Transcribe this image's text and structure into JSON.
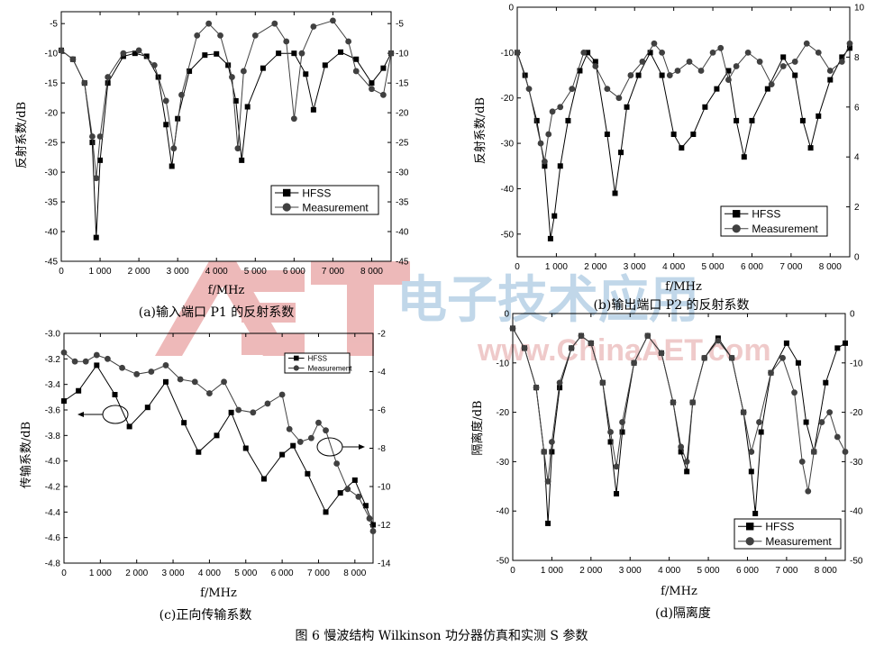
{
  "figure_caption": "图 6   慢波结构 Wilkinson 功分器仿真和实测 S 参数",
  "watermark": {
    "logo": "AET",
    "text": "www.ChinaAET.com",
    "brand_cn": "电子技术应用"
  },
  "legend_labels": {
    "hfss": "HFSS",
    "measurement": "Measurement"
  },
  "colors": {
    "hfss": "#000000",
    "measurement": "#404040",
    "watermark_red": "#e08080",
    "watermark_blue": "#8fb8d8"
  },
  "chart_data": [
    {
      "id": "a",
      "type": "scatter",
      "caption": "(a)输入端口 P1 的反射系数",
      "xlabel": "f/MHz",
      "ylabel": "反射系数/dB",
      "xlim": [
        0,
        8500
      ],
      "ylim": [
        -45,
        -3
      ],
      "y2lim": [
        -45,
        -3
      ],
      "xticks": [
        0,
        1000,
        2000,
        3000,
        4000,
        5000,
        6000,
        7000,
        8000
      ],
      "xtick_labels": [
        "0",
        "1 000",
        "2 000",
        "3 000",
        "4 000",
        "5 000",
        "6 000",
        "7 000",
        "8 000"
      ],
      "yticks": [
        -5,
        -10,
        -15,
        -20,
        -25,
        -30,
        -35,
        -40,
        -45
      ],
      "y2ticks": [
        -5,
        -10,
        -15,
        -20,
        -25,
        -30,
        -35,
        -40,
        -45
      ],
      "legend": "bottom-right",
      "series": [
        {
          "name": "HFSS",
          "marker": "square",
          "x": [
            0,
            300,
            600,
            800,
            900,
            1000,
            1200,
            1600,
            1900,
            2200,
            2500,
            2700,
            2850,
            3000,
            3300,
            3700,
            4000,
            4300,
            4500,
            4650,
            4800,
            5200,
            5600,
            6000,
            6300,
            6500,
            6800,
            7200,
            7600,
            8000,
            8300,
            8500
          ],
          "y": [
            -9.5,
            -11,
            -15,
            -25,
            -41,
            -28,
            -15,
            -10.5,
            -10,
            -10.5,
            -14,
            -22,
            -29,
            -21,
            -13,
            -10.3,
            -10.1,
            -12,
            -18,
            -28,
            -19,
            -12.5,
            -10,
            -10,
            -13.5,
            -19.5,
            -12,
            -9.8,
            -11,
            -15,
            -12.5,
            -10
          ]
        },
        {
          "name": "Measurement",
          "marker": "circle",
          "x": [
            0,
            300,
            600,
            800,
            900,
            1000,
            1200,
            1600,
            2000,
            2400,
            2700,
            2900,
            3100,
            3500,
            3800,
            4100,
            4400,
            4550,
            4700,
            5000,
            5500,
            5800,
            6000,
            6200,
            6500,
            7000,
            7400,
            7600,
            8000,
            8300,
            8500
          ],
          "y": [
            -9.5,
            -11,
            -15,
            -24,
            -31,
            -24,
            -14,
            -10,
            -9.5,
            -12,
            -18,
            -26,
            -17,
            -7,
            -5,
            -7,
            -14,
            -26,
            -13,
            -7,
            -5,
            -8,
            -21,
            -10,
            -5.5,
            -4.5,
            -8,
            -13,
            -16,
            -17,
            -10
          ]
        }
      ]
    },
    {
      "id": "b",
      "type": "scatter",
      "caption": "(b)输出端口 P2 的反射系数",
      "xlabel": "f/MHz",
      "ylabel": "反射系数/dB",
      "xlim": [
        0,
        8500
      ],
      "ylim": [
        -55,
        0
      ],
      "y2lim": [
        0,
        10
      ],
      "xticks": [
        0,
        1000,
        2000,
        3000,
        4000,
        5000,
        6000,
        7000,
        8000
      ],
      "xtick_labels": [
        "0",
        "1 000",
        "2 000",
        "3 000",
        "4 000",
        "5 000",
        "6 000",
        "7 000",
        "8 000"
      ],
      "yticks": [
        0,
        -10,
        -20,
        -30,
        -40,
        -50
      ],
      "y2ticks": [
        10,
        8,
        6,
        4,
        2,
        0
      ],
      "legend": "bottom-right",
      "series": [
        {
          "name": "HFSS",
          "marker": "square",
          "x": [
            0,
            200,
            500,
            700,
            850,
            950,
            1100,
            1300,
            1600,
            1800,
            2000,
            2300,
            2500,
            2650,
            2800,
            3100,
            3400,
            3700,
            4000,
            4200,
            4500,
            4800,
            5100,
            5400,
            5600,
            5800,
            6000,
            6400,
            6800,
            7100,
            7300,
            7500,
            7700,
            8000,
            8300,
            8500
          ],
          "y": [
            -10,
            -15,
            -25,
            -35,
            -51,
            -46,
            -35,
            -25,
            -14,
            -10,
            -12,
            -28,
            -41,
            -32,
            -22,
            -15,
            -10,
            -15,
            -28,
            -31,
            -28,
            -22,
            -18,
            -14,
            -25,
            -33,
            -25,
            -18,
            -11,
            -15,
            -25,
            -31,
            -24,
            -16,
            -11,
            -9
          ]
        },
        {
          "name": "Measurement",
          "marker": "circle",
          "x": [
            0,
            300,
            600,
            700,
            800,
            900,
            1100,
            1400,
            1700,
            2000,
            2300,
            2600,
            2900,
            3200,
            3500,
            3700,
            3900,
            4100,
            4400,
            4700,
            5000,
            5200,
            5400,
            5600,
            5900,
            6200,
            6500,
            6800,
            7100,
            7400,
            7700,
            8000,
            8300,
            8500
          ],
          "y": [
            -10,
            -18,
            -30,
            -34,
            -28,
            -23,
            -22,
            -18,
            -10,
            -13,
            -18,
            -20,
            -15,
            -12,
            -8,
            -10,
            -15,
            -14,
            -12,
            -14,
            -10,
            -9,
            -16,
            -13,
            -10,
            -12,
            -17,
            -13,
            -12,
            -8,
            -10,
            -14,
            -12,
            -8
          ]
        }
      ]
    },
    {
      "id": "c",
      "type": "scatter",
      "caption": "(c)正向传输系数",
      "xlabel": "f/MHz",
      "ylabel": "传输系数/dB",
      "xlim": [
        0,
        8500
      ],
      "ylim": [
        -4.8,
        -3.0
      ],
      "y2lim": [
        -14,
        -2
      ],
      "xticks": [
        0,
        1000,
        2000,
        3000,
        4000,
        5000,
        6000,
        7000,
        8000
      ],
      "xtick_labels": [
        "0",
        "1 000",
        "2 000",
        "3 000",
        "4 000",
        "5 000",
        "6 000",
        "7 000",
        "8 000"
      ],
      "yticks": [
        -3.0,
        -3.2,
        -3.4,
        -3.6,
        -3.8,
        -4.0,
        -4.2,
        -4.4,
        -4.6,
        -4.8
      ],
      "ytick_labels": [
        "-3.0",
        "-3.2",
        "-3.4",
        "-3.6",
        "-3.8",
        "-4.0",
        "-4.2",
        "-4.4",
        "-4.6",
        "-4.8"
      ],
      "y2ticks": [
        -2,
        -4,
        -6,
        -8,
        -10,
        -12,
        -14
      ],
      "legend": "top-right",
      "series": [
        {
          "name": "HFSS",
          "marker": "square",
          "axis": "left",
          "x": [
            0,
            400,
            900,
            1400,
            1800,
            2300,
            2800,
            3300,
            3700,
            4200,
            4600,
            5000,
            5500,
            6000,
            6300,
            6700,
            7200,
            7600,
            8000,
            8300,
            8500
          ],
          "y": [
            -3.53,
            -3.45,
            -3.25,
            -3.48,
            -3.73,
            -3.58,
            -3.38,
            -3.7,
            -3.93,
            -3.8,
            -3.62,
            -3.9,
            -4.14,
            -3.95,
            -3.88,
            -4.1,
            -4.4,
            -4.25,
            -4.15,
            -4.35,
            -4.5
          ]
        },
        {
          "name": "Measurement",
          "marker": "circle",
          "axis": "left",
          "x": [
            0,
            300,
            600,
            900,
            1200,
            1600,
            2000,
            2400,
            2800,
            3200,
            3600,
            4000,
            4400,
            4800,
            5200,
            5600,
            6000,
            6200,
            6500,
            6800,
            7000,
            7200,
            7500,
            7800,
            8100,
            8400,
            8500
          ],
          "y": [
            -3.15,
            -3.22,
            -3.22,
            -3.17,
            -3.2,
            -3.27,
            -3.32,
            -3.3,
            -3.25,
            -3.36,
            -3.38,
            -3.47,
            -3.38,
            -3.6,
            -3.62,
            -3.55,
            -3.48,
            -3.75,
            -3.85,
            -3.82,
            -3.7,
            -3.76,
            -4.02,
            -4.22,
            -4.28,
            -4.45,
            -4.55
          ]
        }
      ],
      "annotations": [
        {
          "text": "",
          "target": "left-axis",
          "note": "ellipse with arrow pointing left near HFSS curve"
        },
        {
          "text": "",
          "target": "right-axis",
          "note": "ellipse with arrow pointing right near Measurement curve"
        }
      ]
    },
    {
      "id": "d",
      "type": "scatter",
      "caption": "(d)隔离度",
      "xlabel": "f/MHz",
      "ylabel": "隔离度/dB",
      "xlim": [
        0,
        8500
      ],
      "ylim": [
        -50,
        0
      ],
      "y2lim": [
        -50,
        0
      ],
      "xticks": [
        0,
        1000,
        2000,
        3000,
        4000,
        5000,
        6000,
        7000,
        8000
      ],
      "xtick_labels": [
        "0",
        "1 000",
        "2 000",
        "3 000",
        "4 000",
        "5 000",
        "6 000",
        "7 000",
        "8 000"
      ],
      "yticks": [
        0,
        -10,
        -20,
        -30,
        -40,
        -50
      ],
      "y2ticks": [
        0,
        -10,
        -20,
        -30,
        -40,
        -50
      ],
      "legend": "bottom-right",
      "series": [
        {
          "name": "HFSS",
          "marker": "square",
          "x": [
            0,
            300,
            600,
            800,
            900,
            1000,
            1200,
            1500,
            1750,
            2000,
            2300,
            2500,
            2650,
            2800,
            3100,
            3450,
            3800,
            4100,
            4300,
            4450,
            4600,
            4900,
            5250,
            5600,
            5900,
            6100,
            6200,
            6350,
            6600,
            7000,
            7300,
            7500,
            7700,
            8000,
            8300,
            8500
          ],
          "y": [
            -3,
            -7,
            -15,
            -28,
            -42.5,
            -28,
            -15,
            -7,
            -4.5,
            -6,
            -14,
            -26,
            -36.5,
            -24,
            -10,
            -4.5,
            -8,
            -18,
            -28,
            -32,
            -18,
            -9,
            -5,
            -9,
            -20,
            -32,
            -40.5,
            -24,
            -12,
            -6,
            -10,
            -22,
            -28,
            -14,
            -7,
            -6
          ]
        },
        {
          "name": "Measurement",
          "marker": "circle",
          "x": [
            0,
            300,
            600,
            800,
            900,
            1000,
            1200,
            1500,
            1750,
            2000,
            2300,
            2500,
            2650,
            2800,
            3100,
            3450,
            3800,
            4100,
            4300,
            4450,
            4600,
            4900,
            5250,
            5600,
            5900,
            6100,
            6300,
            6600,
            6900,
            7200,
            7400,
            7550,
            7700,
            7900,
            8100,
            8300,
            8500
          ],
          "y": [
            -3,
            -7,
            -15,
            -28,
            -34,
            -26,
            -14,
            -7,
            -4.5,
            -6,
            -14,
            -24,
            -31,
            -22,
            -10,
            -4.5,
            -8,
            -18,
            -27,
            -30,
            -18,
            -9,
            -5.5,
            -9,
            -20,
            -28,
            -22,
            -12,
            -9,
            -16,
            -30,
            -36,
            -28,
            -22,
            -20,
            -25,
            -28
          ]
        }
      ]
    }
  ]
}
